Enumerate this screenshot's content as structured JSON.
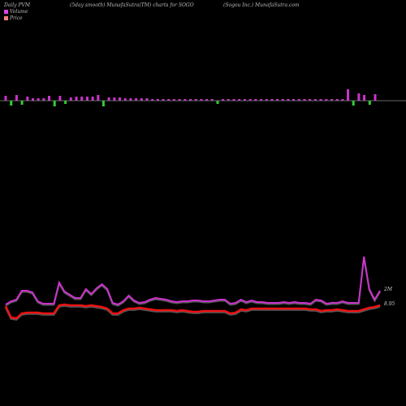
{
  "header": {
    "left": "Daily PVM",
    "center": "(5day smooth) MunafaSutra(TM) charts for SOGO",
    "right": "(Sogou Inc.) MunafaSutra.com"
  },
  "legend": [
    {
      "label": "Volume",
      "color": "#e040e0"
    },
    {
      "label": "Price",
      "color": "#f08080"
    }
  ],
  "colors": {
    "up_bar": "#cc33cc",
    "down_bar": "#33cc33",
    "baseline": "#888888",
    "volume_line": "#cc33cc",
    "price_line": "#ee1111"
  },
  "chart_data": {
    "type": "line",
    "series_labels": {
      "volume": "2M",
      "price": "8.95"
    },
    "volume_bars": [
      {
        "dir": "up",
        "h": 6
      },
      {
        "dir": "down",
        "h": 6
      },
      {
        "dir": "up",
        "h": 7
      },
      {
        "dir": "down",
        "h": 5
      },
      {
        "dir": "up",
        "h": 5
      },
      {
        "dir": "up",
        "h": 3
      },
      {
        "dir": "up",
        "h": 3
      },
      {
        "dir": "up",
        "h": 3
      },
      {
        "dir": "up",
        "h": 6
      },
      {
        "dir": "down",
        "h": 7
      },
      {
        "dir": "up",
        "h": 6
      },
      {
        "dir": "down",
        "h": 4
      },
      {
        "dir": "up",
        "h": 4
      },
      {
        "dir": "up",
        "h": 5
      },
      {
        "dir": "up",
        "h": 5
      },
      {
        "dir": "up",
        "h": 5
      },
      {
        "dir": "up",
        "h": 5
      },
      {
        "dir": "up",
        "h": 7
      },
      {
        "dir": "down",
        "h": 7
      },
      {
        "dir": "up",
        "h": 4
      },
      {
        "dir": "up",
        "h": 4
      },
      {
        "dir": "up",
        "h": 4
      },
      {
        "dir": "up",
        "h": 3
      },
      {
        "dir": "up",
        "h": 3
      },
      {
        "dir": "up",
        "h": 3
      },
      {
        "dir": "up",
        "h": 3
      },
      {
        "dir": "up",
        "h": 3
      },
      {
        "dir": "up",
        "h": 2
      },
      {
        "dir": "up",
        "h": 2
      },
      {
        "dir": "up",
        "h": 2
      },
      {
        "dir": "up",
        "h": 2
      },
      {
        "dir": "up",
        "h": 2
      },
      {
        "dir": "up",
        "h": 2
      },
      {
        "dir": "up",
        "h": 2
      },
      {
        "dir": "up",
        "h": 2
      },
      {
        "dir": "up",
        "h": 2
      },
      {
        "dir": "up",
        "h": 2
      },
      {
        "dir": "up",
        "h": 2
      },
      {
        "dir": "up",
        "h": 2
      },
      {
        "dir": "down",
        "h": 4
      },
      {
        "dir": "up",
        "h": 2
      },
      {
        "dir": "up",
        "h": 2
      },
      {
        "dir": "up",
        "h": 2
      },
      {
        "dir": "up",
        "h": 2
      },
      {
        "dir": "up",
        "h": 2
      },
      {
        "dir": "up",
        "h": 2
      },
      {
        "dir": "up",
        "h": 2
      },
      {
        "dir": "up",
        "h": 2
      },
      {
        "dir": "up",
        "h": 2
      },
      {
        "dir": "up",
        "h": 2
      },
      {
        "dir": "up",
        "h": 2
      },
      {
        "dir": "up",
        "h": 2
      },
      {
        "dir": "up",
        "h": 2
      },
      {
        "dir": "up",
        "h": 2
      },
      {
        "dir": "up",
        "h": 2
      },
      {
        "dir": "up",
        "h": 2
      },
      {
        "dir": "up",
        "h": 2
      },
      {
        "dir": "up",
        "h": 2
      },
      {
        "dir": "up",
        "h": 2
      },
      {
        "dir": "up",
        "h": 2
      },
      {
        "dir": "up",
        "h": 2
      },
      {
        "dir": "up",
        "h": 2
      },
      {
        "dir": "up",
        "h": 2
      },
      {
        "dir": "up",
        "h": 14
      },
      {
        "dir": "down",
        "h": 6
      },
      {
        "dir": "up",
        "h": 9
      },
      {
        "dir": "up",
        "h": 7
      },
      {
        "dir": "down",
        "h": 5
      },
      {
        "dir": "up",
        "h": 8
      }
    ],
    "volume_line": [
      375,
      371,
      369,
      358,
      358,
      360,
      371,
      374,
      374,
      374,
      348,
      359,
      363,
      367,
      367,
      356,
      362,
      355,
      350,
      356,
      373,
      375,
      371,
      364,
      370,
      373,
      372,
      369,
      367,
      368,
      369,
      371,
      372,
      371,
      371,
      370,
      370,
      371,
      371,
      370,
      369,
      369,
      374,
      373,
      369,
      372,
      370,
      372,
      372,
      373,
      373,
      373,
      372,
      373,
      372,
      373,
      373,
      374,
      369,
      370,
      374,
      373,
      373,
      371,
      373,
      373,
      373,
      316,
      356,
      369,
      358
    ],
    "price_line": [
      377,
      391,
      392,
      386,
      385,
      385,
      385,
      386,
      386,
      386,
      376,
      375,
      376,
      376,
      376,
      377,
      376,
      377,
      378,
      380,
      386,
      386,
      382,
      380,
      380,
      379,
      380,
      381,
      382,
      382,
      382,
      382,
      383,
      382,
      383,
      384,
      384,
      383,
      383,
      383,
      383,
      383,
      386,
      385,
      381,
      382,
      380,
      380,
      380,
      380,
      380,
      380,
      380,
      380,
      380,
      380,
      380,
      381,
      381,
      383,
      382,
      382,
      381,
      382,
      383,
      383,
      383,
      381,
      379,
      378,
      376
    ]
  }
}
